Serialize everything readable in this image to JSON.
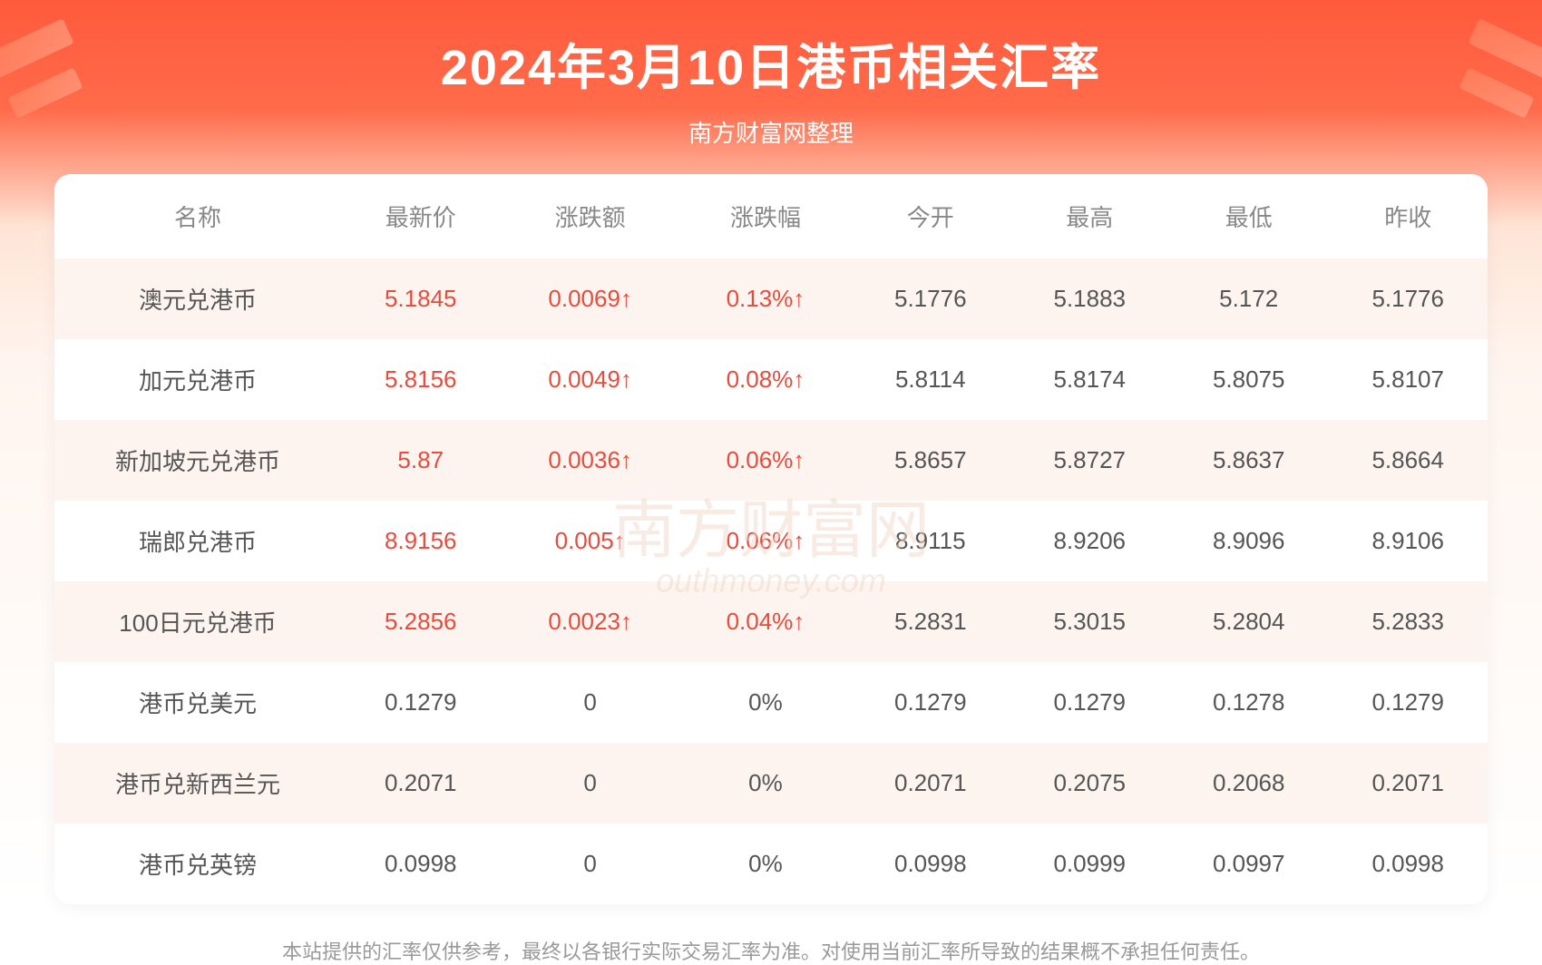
{
  "title": "2024年3月10日港币相关汇率",
  "subtitle": "南方财富网整理",
  "watermark_main": "南方财富网",
  "watermark_sub": "outhmoney.com",
  "disclaimer": "本站提供的汇率仅供参考，最终以各银行实际交易汇率为准。对使用当前汇率所导致的结果概不承担任何责任。",
  "colors": {
    "header_gradient_from": "#ff5a3c",
    "header_gradient_to": "#fff5ef",
    "title_color": "#ffffff",
    "header_text": "#888888",
    "body_text": "#555555",
    "up_color": "#e84a3c",
    "row_odd_bg": "#fdf4ef",
    "row_even_bg": "#ffffff",
    "disclaimer_color": "#999999",
    "watermark_color": "#f0d8c8"
  },
  "table": {
    "columns": [
      "名称",
      "最新价",
      "涨跌额",
      "涨跌幅",
      "今开",
      "最高",
      "最低",
      "昨收"
    ],
    "rows": [
      {
        "name": "澳元兑港币",
        "latest": "5.1845",
        "change": "0.0069↑",
        "pct": "0.13%↑",
        "open": "5.1776",
        "high": "5.1883",
        "low": "5.172",
        "prev": "5.1776",
        "dir": "up"
      },
      {
        "name": "加元兑港币",
        "latest": "5.8156",
        "change": "0.0049↑",
        "pct": "0.08%↑",
        "open": "5.8114",
        "high": "5.8174",
        "low": "5.8075",
        "prev": "5.8107",
        "dir": "up"
      },
      {
        "name": "新加坡元兑港币",
        "latest": "5.87",
        "change": "0.0036↑",
        "pct": "0.06%↑",
        "open": "5.8657",
        "high": "5.8727",
        "low": "5.8637",
        "prev": "5.8664",
        "dir": "up"
      },
      {
        "name": "瑞郎兑港币",
        "latest": "8.9156",
        "change": "0.005↑",
        "pct": "0.06%↑",
        "open": "8.9115",
        "high": "8.9206",
        "low": "8.9096",
        "prev": "8.9106",
        "dir": "up"
      },
      {
        "name": "100日元兑港币",
        "latest": "5.2856",
        "change": "0.0023↑",
        "pct": "0.04%↑",
        "open": "5.2831",
        "high": "5.3015",
        "low": "5.2804",
        "prev": "5.2833",
        "dir": "up"
      },
      {
        "name": "港币兑美元",
        "latest": "0.1279",
        "change": "0",
        "pct": "0%",
        "open": "0.1279",
        "high": "0.1279",
        "low": "0.1278",
        "prev": "0.1279",
        "dir": "flat"
      },
      {
        "name": "港币兑新西兰元",
        "latest": "0.2071",
        "change": "0",
        "pct": "0%",
        "open": "0.2071",
        "high": "0.2075",
        "low": "0.2068",
        "prev": "0.2071",
        "dir": "flat"
      },
      {
        "name": "港币兑英镑",
        "latest": "0.0998",
        "change": "0",
        "pct": "0%",
        "open": "0.0998",
        "high": "0.0999",
        "low": "0.0997",
        "prev": "0.0998",
        "dir": "flat"
      }
    ]
  }
}
